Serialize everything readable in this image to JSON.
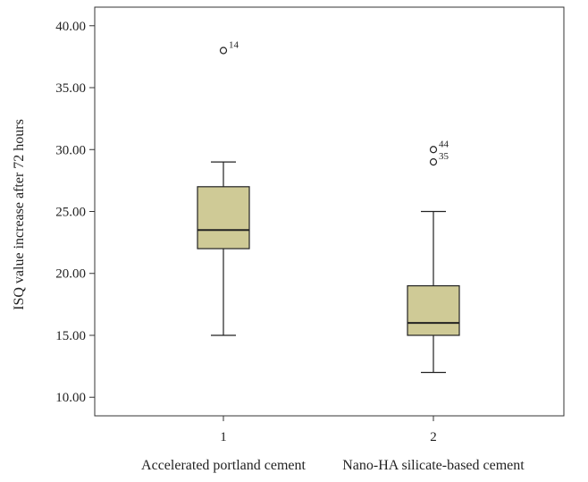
{
  "chart_data": {
    "type": "box",
    "title": "",
    "ylabel": "ISQ value increase after 72 hours",
    "xlabel": "",
    "ylim": [
      8.5,
      41.5
    ],
    "yticks": [
      10,
      15,
      20,
      25,
      30,
      35,
      40
    ],
    "ytick_labels": [
      "10.00",
      "15.00",
      "20.00",
      "25.00",
      "30.00",
      "35.00",
      "40.00"
    ],
    "box_fill": "#cfca96",
    "categories": [
      {
        "tick": "1",
        "label": "Accelerated portland cement",
        "min": 15,
        "q1": 22,
        "median": 23.5,
        "q3": 27,
        "max": 29,
        "outliers": [
          {
            "value": 38,
            "label": "14"
          }
        ]
      },
      {
        "tick": "2",
        "label": "Nano-HA silicate-based cement",
        "min": 12,
        "q1": 15,
        "median": 16,
        "q3": 19,
        "max": 25,
        "outliers": [
          {
            "value": 30,
            "label": "44"
          },
          {
            "value": 29,
            "label": "35"
          }
        ]
      }
    ],
    "grid": false,
    "legend": "none"
  }
}
